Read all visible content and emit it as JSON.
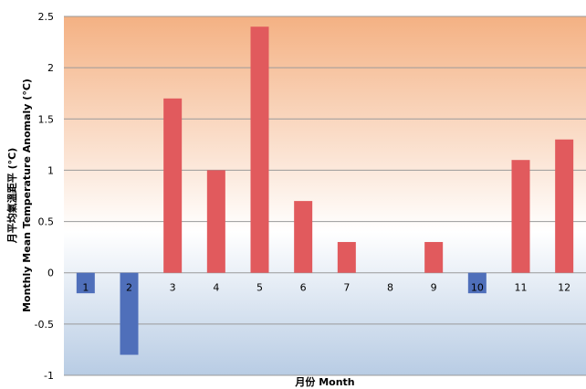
{
  "chart_data": {
    "type": "bar",
    "title": "",
    "categories": [
      "1",
      "2",
      "3",
      "4",
      "5",
      "6",
      "7",
      "8",
      "9",
      "10",
      "11",
      "12"
    ],
    "values": [
      -0.2,
      -0.8,
      1.7,
      1.0,
      2.4,
      0.7,
      0.3,
      0.0,
      0.3,
      -0.2,
      1.1,
      1.3
    ],
    "xlabel": "月份  Month",
    "ylabel_line1": "月平均氣溫距平 (°C)",
    "ylabel_line2": "Monthly Mean Temperature Anomaly (°C)",
    "ylim": [
      -1,
      2.5
    ],
    "yticks": [
      "2.5",
      "2",
      "1.5",
      "1",
      "0.5",
      "0",
      "-0.5",
      "-1"
    ],
    "ytick_values": [
      2.5,
      2,
      1.5,
      1,
      0.5,
      0,
      -0.5,
      -1
    ],
    "grid": true,
    "colors": {
      "positive": "#e15a5d",
      "negative": "#4f6fba",
      "grid": "#9a9a9a",
      "bg_top": "#f4b183",
      "bg_mid": "#ffffff",
      "bg_bottom": "#b8cce4"
    }
  }
}
